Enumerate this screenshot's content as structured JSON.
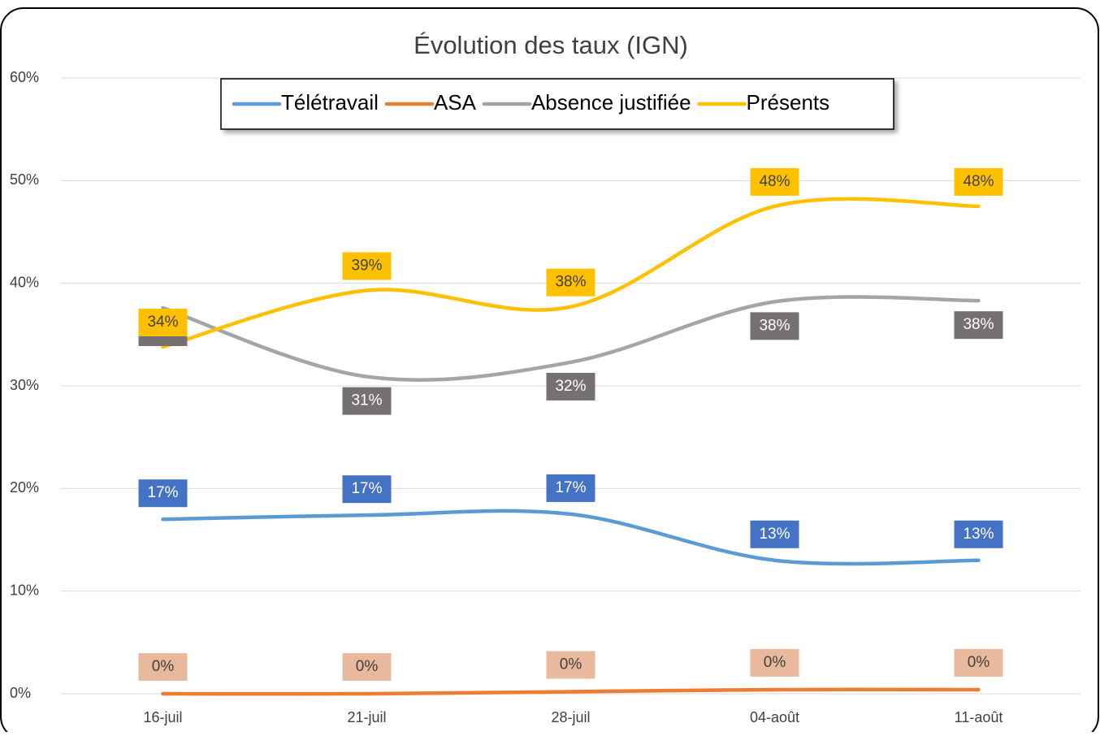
{
  "chart_data": {
    "type": "line",
    "title": "Évolution des taux (IGN)",
    "categories": [
      "16-juil",
      "21-juil",
      "28-juil",
      "04-août",
      "11-août"
    ],
    "series": [
      {
        "name": "Télétravail",
        "color": "#5b9bd5",
        "values": [
          17.0,
          17.4,
          17.5,
          13.0,
          13.0
        ],
        "value_labels": [
          "17%",
          "17%",
          "17%",
          "13%",
          "13%"
        ]
      },
      {
        "name": "ASA",
        "color": "#ed7d31",
        "values": [
          0,
          0,
          0.2,
          0.4,
          0.4
        ],
        "value_labels": [
          "0%",
          "0%",
          "0%",
          "0%",
          "0%"
        ]
      },
      {
        "name": "Absence justifiée",
        "color": "#a5a5a5",
        "values": [
          37.6,
          30.9,
          32.3,
          38.2,
          38.3
        ],
        "value_labels": [
          "38%",
          "31%",
          "32%",
          "38%",
          "38%"
        ]
      },
      {
        "name": "Présents",
        "color": "#ffc000",
        "values": [
          33.8,
          39.3,
          37.7,
          47.5,
          47.5
        ],
        "value_labels": [
          "34%",
          "39%",
          "38%",
          "48%",
          "48%"
        ]
      }
    ],
    "ylim": [
      0,
      60
    ],
    "yticks": [
      {
        "value": 0,
        "label": "0%"
      },
      {
        "value": 10,
        "label": "10%"
      },
      {
        "value": 20,
        "label": "20%"
      },
      {
        "value": 30,
        "label": "30%"
      },
      {
        "value": 40,
        "label": "40%"
      },
      {
        "value": 50,
        "label": "50%"
      },
      {
        "value": 60,
        "label": "60%"
      }
    ],
    "grid": true,
    "legend": "top"
  }
}
